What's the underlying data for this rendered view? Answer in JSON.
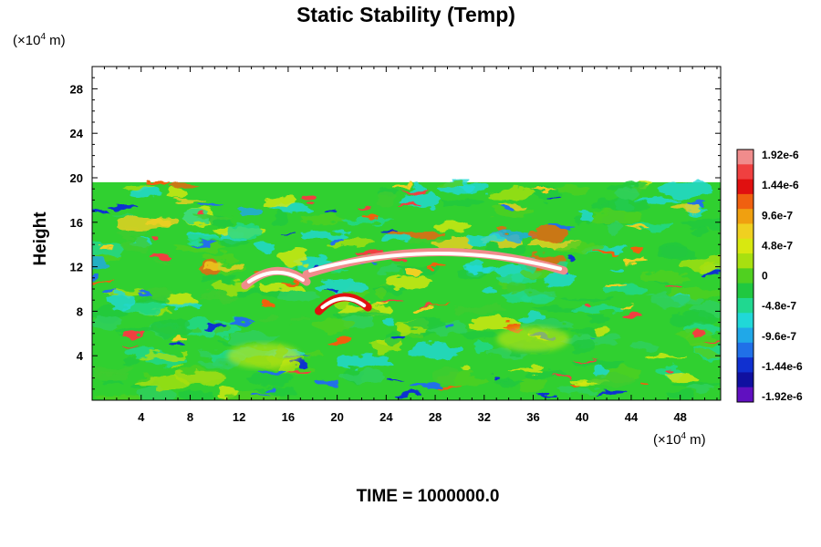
{
  "chart_data": {
    "type": "heatmap",
    "title": "Static Stability (Temp)",
    "ylabel": "Height",
    "xunit_prefix": "(×10",
    "xunit_exp": "4",
    "xunit_suffix": " m)",
    "yunit_prefix": "(×10",
    "yunit_exp": "4",
    "yunit_suffix": " m)",
    "footer": "TIME = 1000000.0",
    "xlim": [
      0,
      51.3
    ],
    "ylim": [
      0,
      30
    ],
    "xticks": [
      4,
      8,
      12,
      16,
      20,
      24,
      28,
      32,
      36,
      40,
      44,
      48
    ],
    "yticks": [
      4,
      8,
      12,
      16,
      20,
      24,
      28
    ],
    "xtick_labels": [
      "4",
      "8",
      "12",
      "16",
      "20",
      "24",
      "28",
      "32",
      "36",
      "40",
      "44",
      "48"
    ],
    "ytick_labels": [
      "4",
      "8",
      "12",
      "16",
      "20",
      "24",
      "28"
    ],
    "data_top": 19.6,
    "colorbar": {
      "labels": [
        "1.92e-6",
        "1.44e-6",
        "9.6e-7",
        "4.8e-7",
        "0",
        "-4.8e-7",
        "-9.6e-7",
        "-1.44e-6",
        "-1.92e-6"
      ],
      "values": [
        1.92e-06,
        1.44e-06,
        9.6e-07,
        4.8e-07,
        0,
        -4.8e-07,
        -9.6e-07,
        -1.44e-06,
        -1.92e-06
      ],
      "colors": [
        "#f08c8c",
        "#f04040",
        "#e01010",
        "#f06010",
        "#f0a010",
        "#f0d020",
        "#d8e810",
        "#a8e010",
        "#50d020",
        "#20c840",
        "#20d890",
        "#20d8d8",
        "#20a8e8",
        "#2070e8",
        "#1030d0",
        "#1010a0",
        "#6010c0"
      ]
    },
    "features": [
      {
        "kind": "band",
        "x0": 17.5,
        "x1": 38.5,
        "y": 12.8,
        "value": 1.92e-06
      },
      {
        "kind": "band",
        "x0": 12.5,
        "x1": 17.5,
        "y": 11.8,
        "value": 1.92e-06
      },
      {
        "kind": "band",
        "x0": 18.5,
        "x1": 22.5,
        "y": 9.5,
        "value": 1.44e-06
      },
      {
        "kind": "eddy",
        "x": 14,
        "y": 4,
        "value": 4.8e-07
      },
      {
        "kind": "eddy",
        "x": 36,
        "y": 5.5,
        "value": 4.8e-07
      }
    ]
  }
}
